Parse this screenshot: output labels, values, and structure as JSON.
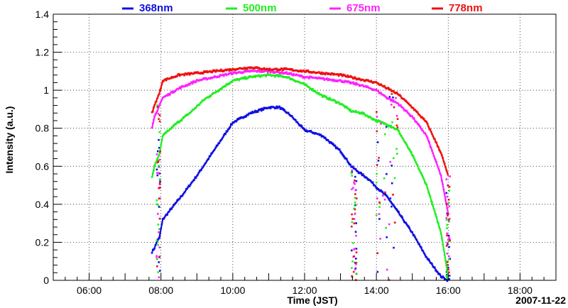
{
  "chart_data": {
    "type": "scatter",
    "title": "",
    "xlabel": "Time (JST)",
    "ylabel": "Intensity (a.u.)",
    "date_label": "2007-11-22",
    "xlim": [
      5.0,
      19.0
    ],
    "ylim": [
      0,
      1.4
    ],
    "x_ticks": [
      6,
      8,
      10,
      12,
      14,
      16,
      18
    ],
    "x_tick_labels": [
      "06:00",
      "08:00",
      "10:00",
      "12:00",
      "14:00",
      "16:00",
      "18:00"
    ],
    "y_ticks": [
      0,
      0.2,
      0.4,
      0.6,
      0.8,
      1,
      1.2,
      1.4
    ],
    "y_tick_labels": [
      "0",
      "0.2",
      "0.4",
      "0.6",
      "0.8",
      "1",
      "1.2",
      "1.4"
    ],
    "grid": true,
    "legend_position": "top",
    "series": [
      {
        "name": "368nm",
        "color": "#1010e0",
        "points": [
          [
            7.75,
            0.15
          ],
          [
            7.82,
            0.17
          ],
          [
            7.9,
            0.21
          ],
          [
            7.95,
            0.22
          ],
          [
            8.05,
            0.32
          ],
          [
            8.3,
            0.38
          ],
          [
            8.6,
            0.45
          ],
          [
            9.0,
            0.55
          ],
          [
            9.5,
            0.69
          ],
          [
            10.0,
            0.83
          ],
          [
            10.5,
            0.88
          ],
          [
            11.0,
            0.91
          ],
          [
            11.3,
            0.91
          ],
          [
            11.6,
            0.87
          ],
          [
            12.0,
            0.79
          ],
          [
            12.2,
            0.78
          ],
          [
            12.5,
            0.76
          ],
          [
            13.0,
            0.68
          ],
          [
            13.3,
            0.6
          ],
          [
            13.5,
            0.57
          ],
          [
            13.8,
            0.53
          ],
          [
            14.0,
            0.49
          ],
          [
            14.3,
            0.44
          ],
          [
            14.6,
            0.36
          ],
          [
            15.0,
            0.25
          ],
          [
            15.4,
            0.12
          ],
          [
            15.8,
            0.02
          ],
          [
            16.0,
            0.0
          ]
        ]
      },
      {
        "name": "500nm",
        "color": "#22ee22",
        "points": [
          [
            7.75,
            0.54
          ],
          [
            7.82,
            0.6
          ],
          [
            7.9,
            0.64
          ],
          [
            7.95,
            0.66
          ],
          [
            8.05,
            0.76
          ],
          [
            8.4,
            0.82
          ],
          [
            8.8,
            0.88
          ],
          [
            9.2,
            0.95
          ],
          [
            9.6,
            1.0
          ],
          [
            10.0,
            1.05
          ],
          [
            10.5,
            1.07
          ],
          [
            11.0,
            1.08
          ],
          [
            11.5,
            1.07
          ],
          [
            12.0,
            1.03
          ],
          [
            12.5,
            0.97
          ],
          [
            13.0,
            0.93
          ],
          [
            13.3,
            0.89
          ],
          [
            13.6,
            0.88
          ],
          [
            14.0,
            0.84
          ],
          [
            14.3,
            0.82
          ],
          [
            14.6,
            0.79
          ],
          [
            15.0,
            0.66
          ],
          [
            15.4,
            0.5
          ],
          [
            15.8,
            0.25
          ],
          [
            16.0,
            0.02
          ]
        ]
      },
      {
        "name": "675nm",
        "color": "#ff22ff",
        "points": [
          [
            7.75,
            0.8
          ],
          [
            7.82,
            0.86
          ],
          [
            7.9,
            0.89
          ],
          [
            7.95,
            0.92
          ],
          [
            8.05,
            0.96
          ],
          [
            8.5,
            1.01
          ],
          [
            9.0,
            1.05
          ],
          [
            9.5,
            1.07
          ],
          [
            10.0,
            1.09
          ],
          [
            10.5,
            1.1
          ],
          [
            11.0,
            1.1
          ],
          [
            11.5,
            1.09
          ],
          [
            12.0,
            1.07
          ],
          [
            12.5,
            1.06
          ],
          [
            13.0,
            1.05
          ],
          [
            13.5,
            1.03
          ],
          [
            14.0,
            1.0
          ],
          [
            14.3,
            0.96
          ],
          [
            14.6,
            0.93
          ],
          [
            15.0,
            0.86
          ],
          [
            15.4,
            0.76
          ],
          [
            15.8,
            0.55
          ],
          [
            16.0,
            0.35
          ]
        ]
      },
      {
        "name": "778nm",
        "color": "#ee1111",
        "points": [
          [
            7.75,
            0.88
          ],
          [
            7.82,
            0.92
          ],
          [
            7.9,
            0.96
          ],
          [
            7.95,
            0.98
          ],
          [
            8.05,
            1.05
          ],
          [
            8.5,
            1.08
          ],
          [
            9.0,
            1.09
          ],
          [
            9.5,
            1.1
          ],
          [
            10.0,
            1.11
          ],
          [
            10.5,
            1.12
          ],
          [
            11.0,
            1.11
          ],
          [
            11.5,
            1.11
          ],
          [
            12.0,
            1.1
          ],
          [
            12.5,
            1.09
          ],
          [
            13.0,
            1.08
          ],
          [
            13.5,
            1.06
          ],
          [
            14.0,
            1.04
          ],
          [
            14.3,
            1.01
          ],
          [
            14.6,
            0.98
          ],
          [
            15.0,
            0.91
          ],
          [
            15.4,
            0.83
          ],
          [
            15.8,
            0.67
          ],
          [
            16.0,
            0.55
          ]
        ]
      }
    ]
  }
}
